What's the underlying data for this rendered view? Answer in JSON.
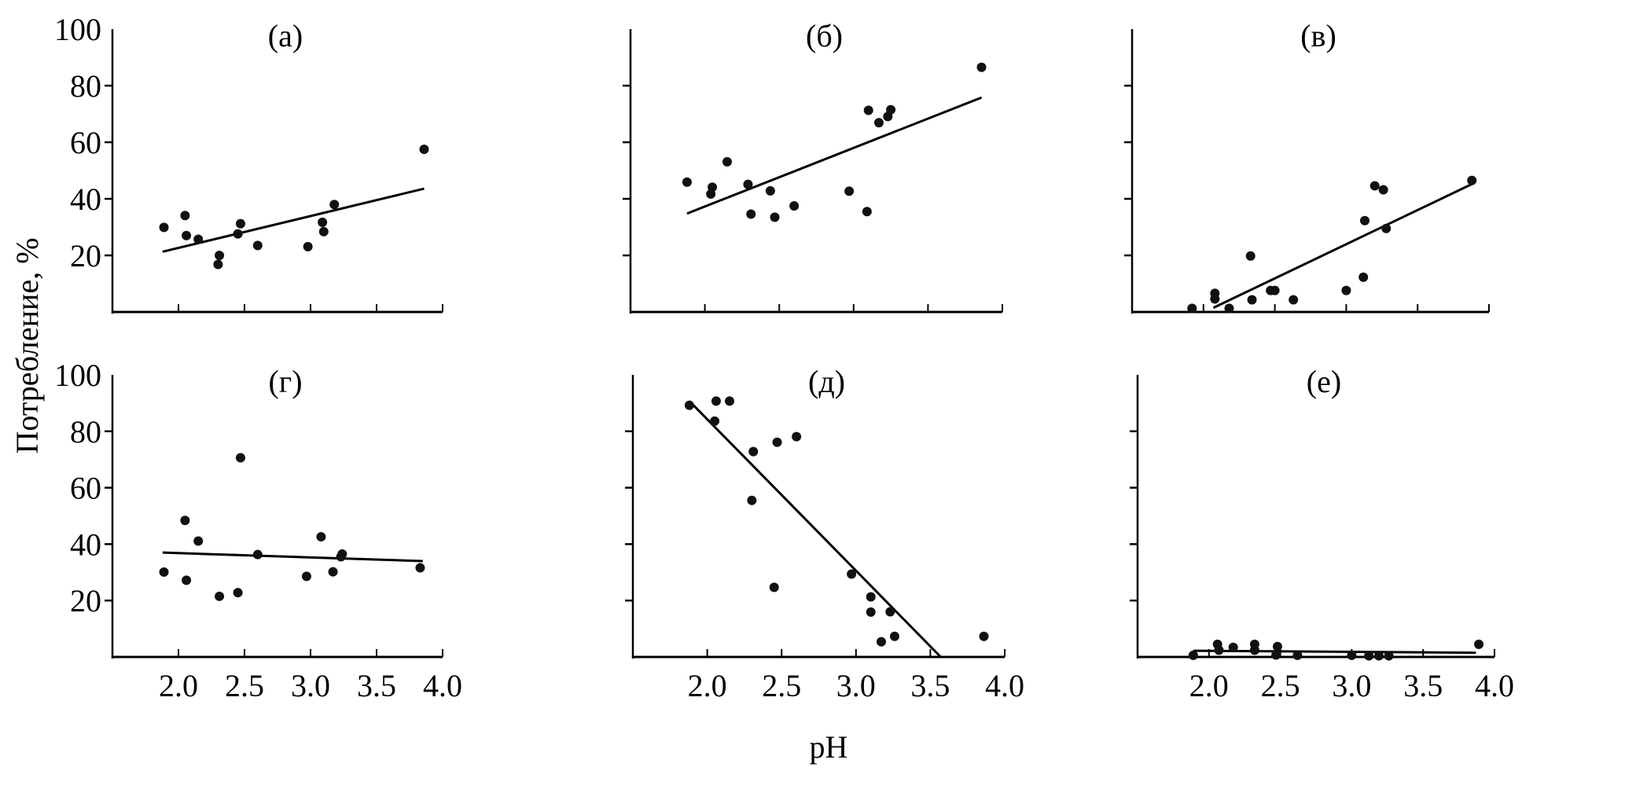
{
  "chart_data": {
    "type": "scatter",
    "xlabel": "pH",
    "ylabel": "Потребление, %",
    "xlim": [
      1.5,
      4.0
    ],
    "ylim": [
      0,
      100
    ],
    "x_ticks": [
      "2.0",
      "2.5",
      "3.0",
      "3.5",
      "4.0"
    ],
    "y_ticks": [
      "20",
      "40",
      "60",
      "80",
      "100"
    ],
    "grid": false,
    "panels": [
      {
        "title": "(а)",
        "points": [
          [
            1.89,
            29.9
          ],
          [
            2.05,
            34.1
          ],
          [
            2.06,
            27.0
          ],
          [
            2.15,
            25.7
          ],
          [
            2.31,
            20.0
          ],
          [
            2.3,
            16.8
          ],
          [
            2.45,
            27.6
          ],
          [
            2.47,
            31.2
          ],
          [
            2.6,
            23.5
          ],
          [
            2.98,
            23.1
          ],
          [
            3.09,
            31.7
          ],
          [
            3.1,
            28.4
          ],
          [
            3.18,
            38.0
          ],
          [
            3.86,
            57.5
          ]
        ],
        "fit": [
          [
            1.88,
            21.3
          ],
          [
            3.86,
            43.6
          ]
        ]
      },
      {
        "title": "(б)",
        "points": [
          [
            1.88,
            45.9
          ],
          [
            2.04,
            41.7
          ],
          [
            2.05,
            44.1
          ],
          [
            2.15,
            53.1
          ],
          [
            2.29,
            45.1
          ],
          [
            2.31,
            34.6
          ],
          [
            2.44,
            42.8
          ],
          [
            2.47,
            33.5
          ],
          [
            2.6,
            37.5
          ],
          [
            2.97,
            42.7
          ],
          [
            3.09,
            35.5
          ],
          [
            3.1,
            71.3
          ],
          [
            3.17,
            66.9
          ],
          [
            3.23,
            69.1
          ],
          [
            3.25,
            71.5
          ],
          [
            3.86,
            86.5
          ]
        ],
        "fit": [
          [
            1.88,
            34.8
          ],
          [
            3.86,
            75.8
          ]
        ]
      },
      {
        "title": "(в)",
        "points": [
          [
            1.92,
            1.3
          ],
          [
            2.08,
            6.6
          ],
          [
            2.08,
            4.6
          ],
          [
            2.18,
            1.3
          ],
          [
            2.33,
            19.8
          ],
          [
            2.34,
            4.3
          ],
          [
            2.47,
            7.6
          ],
          [
            2.5,
            7.6
          ],
          [
            2.63,
            4.3
          ],
          [
            3.0,
            7.6
          ],
          [
            3.12,
            12.3
          ],
          [
            3.13,
            32.3
          ],
          [
            3.2,
            44.6
          ],
          [
            3.26,
            43.2
          ],
          [
            3.28,
            29.5
          ],
          [
            3.88,
            46.5
          ]
        ],
        "fit": [
          [
            2.07,
            1.5
          ],
          [
            3.88,
            45.2
          ]
        ]
      },
      {
        "title": "(г)",
        "points": [
          [
            1.89,
            30.1
          ],
          [
            2.05,
            48.4
          ],
          [
            2.06,
            27.2
          ],
          [
            2.15,
            41.1
          ],
          [
            2.31,
            21.5
          ],
          [
            2.45,
            22.8
          ],
          [
            2.47,
            70.6
          ],
          [
            2.6,
            36.3
          ],
          [
            2.97,
            28.6
          ],
          [
            3.08,
            42.6
          ],
          [
            3.17,
            30.2
          ],
          [
            3.23,
            35.5
          ],
          [
            3.24,
            36.5
          ],
          [
            3.83,
            31.6
          ]
        ],
        "fit": [
          [
            1.88,
            37.0
          ],
          [
            3.85,
            34.0
          ]
        ]
      },
      {
        "title": "(д)",
        "points": [
          [
            1.88,
            89.2
          ],
          [
            2.06,
            90.7
          ],
          [
            2.15,
            90.7
          ],
          [
            2.05,
            83.6
          ],
          [
            2.31,
            72.8
          ],
          [
            2.47,
            76.1
          ],
          [
            2.6,
            78.1
          ],
          [
            2.3,
            55.5
          ],
          [
            2.45,
            24.7
          ],
          [
            2.97,
            29.4
          ],
          [
            3.1,
            21.3
          ],
          [
            3.1,
            15.9
          ],
          [
            3.23,
            16.0
          ],
          [
            3.17,
            5.4
          ],
          [
            3.26,
            7.3
          ],
          [
            3.86,
            7.3
          ]
        ],
        "fit": [
          [
            1.88,
            90.7
          ],
          [
            3.57,
            0.0
          ]
        ]
      },
      {
        "title": "(е)",
        "points": [
          [
            1.89,
            0.6
          ],
          [
            2.06,
            4.5
          ],
          [
            2.07,
            2.4
          ],
          [
            2.17,
            3.4
          ],
          [
            2.32,
            4.5
          ],
          [
            2.32,
            2.4
          ],
          [
            2.48,
            3.7
          ],
          [
            2.47,
            0.7
          ],
          [
            2.62,
            0.6
          ],
          [
            3.0,
            0.6
          ],
          [
            3.12,
            0.4
          ],
          [
            3.19,
            0.4
          ],
          [
            3.26,
            0.4
          ],
          [
            3.89,
            4.5
          ]
        ],
        "fit": [
          [
            1.89,
            2.2
          ],
          [
            3.87,
            1.5
          ]
        ]
      }
    ]
  }
}
